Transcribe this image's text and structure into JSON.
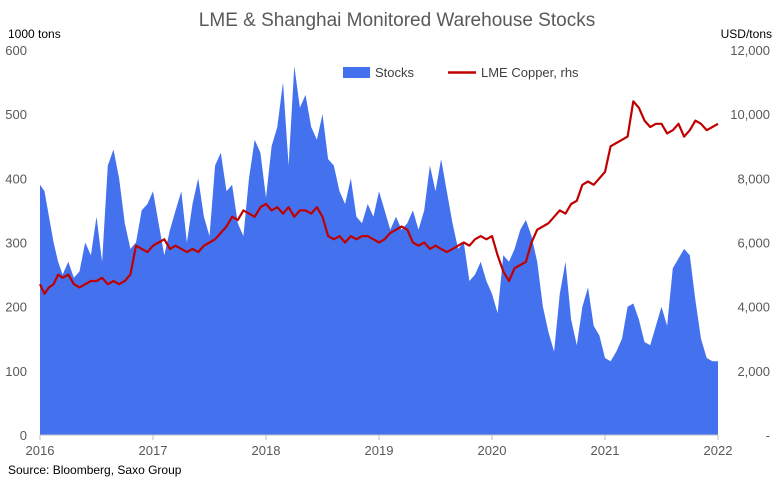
{
  "chart_data": {
    "type": "area",
    "title": "LME & Shanghai Monitored Warehouse Stocks",
    "left_axis_unit": "1000 tons",
    "right_axis_unit": "USD/tons",
    "source": "Source: Bloomberg, Saxo Group",
    "legend_position": "top-center",
    "grid": false,
    "x_range": [
      2016.0,
      2022.0
    ],
    "x_ticks": [
      "2016",
      "2017",
      "2018",
      "2019",
      "2020",
      "2021",
      "2022"
    ],
    "y_left": {
      "range": [
        0,
        600
      ],
      "ticks": [
        "0",
        "100",
        "200",
        "300",
        "400",
        "500",
        "600"
      ]
    },
    "y_right": {
      "range": [
        0,
        12000
      ],
      "ticks": [
        "-",
        "2,000",
        "4,000",
        "6,000",
        "8,000",
        "10,000",
        "12,000"
      ]
    },
    "series": [
      {
        "name": "Stocks",
        "type": "area",
        "axis": "left",
        "color": "#4472ef",
        "x": [
          2016.0,
          2016.04,
          2016.08,
          2016.12,
          2016.16,
          2016.2,
          2016.25,
          2016.3,
          2016.35,
          2016.4,
          2016.45,
          2016.5,
          2016.55,
          2016.6,
          2016.65,
          2016.7,
          2016.75,
          2016.8,
          2016.85,
          2016.9,
          2016.95,
          2017.0,
          2017.05,
          2017.1,
          2017.15,
          2017.2,
          2017.25,
          2017.3,
          2017.35,
          2017.4,
          2017.45,
          2017.5,
          2017.55,
          2017.6,
          2017.65,
          2017.7,
          2017.75,
          2017.8,
          2017.85,
          2017.9,
          2017.95,
          2018.0,
          2018.05,
          2018.1,
          2018.15,
          2018.2,
          2018.25,
          2018.3,
          2018.35,
          2018.4,
          2018.45,
          2018.5,
          2018.55,
          2018.6,
          2018.65,
          2018.7,
          2018.75,
          2018.8,
          2018.85,
          2018.9,
          2018.95,
          2019.0,
          2019.05,
          2019.1,
          2019.15,
          2019.2,
          2019.25,
          2019.3,
          2019.35,
          2019.4,
          2019.45,
          2019.5,
          2019.55,
          2019.6,
          2019.65,
          2019.7,
          2019.75,
          2019.8,
          2019.85,
          2019.9,
          2019.95,
          2020.0,
          2020.05,
          2020.1,
          2020.15,
          2020.2,
          2020.25,
          2020.3,
          2020.35,
          2020.4,
          2020.45,
          2020.5,
          2020.55,
          2020.6,
          2020.65,
          2020.7,
          2020.75,
          2020.8,
          2020.85,
          2020.9,
          2020.95,
          2021.0,
          2021.05,
          2021.1,
          2021.15,
          2021.2,
          2021.25,
          2021.3,
          2021.35,
          2021.4,
          2021.45,
          2021.5,
          2021.55,
          2021.6,
          2021.65,
          2021.7,
          2021.75,
          2021.8,
          2021.85,
          2021.9,
          2021.95,
          2022.0
        ],
        "values": [
          390,
          380,
          340,
          300,
          270,
          250,
          270,
          245,
          255,
          300,
          280,
          340,
          270,
          420,
          445,
          400,
          330,
          290,
          300,
          350,
          360,
          380,
          330,
          280,
          320,
          350,
          380,
          300,
          360,
          400,
          340,
          310,
          420,
          440,
          380,
          390,
          330,
          310,
          400,
          460,
          440,
          370,
          450,
          480,
          550,
          420,
          575,
          510,
          530,
          480,
          460,
          500,
          430,
          420,
          380,
          360,
          400,
          340,
          330,
          360,
          340,
          380,
          350,
          320,
          340,
          320,
          330,
          350,
          320,
          350,
          420,
          380,
          430,
          380,
          330,
          290,
          300,
          240,
          250,
          270,
          240,
          220,
          190,
          280,
          270,
          290,
          320,
          335,
          310,
          270,
          200,
          160,
          130,
          220,
          270,
          180,
          140,
          200,
          230,
          170,
          155,
          120,
          115,
          130,
          150,
          200,
          205,
          180,
          145,
          140,
          170,
          200,
          170,
          260,
          275,
          290,
          280,
          210,
          150,
          120,
          115,
          115
        ]
      },
      {
        "name": "LME Copper, rhs",
        "type": "line",
        "axis": "right",
        "color": "#c00000",
        "x": [
          2016.0,
          2016.04,
          2016.08,
          2016.12,
          2016.16,
          2016.2,
          2016.25,
          2016.3,
          2016.35,
          2016.4,
          2016.45,
          2016.5,
          2016.55,
          2016.6,
          2016.65,
          2016.7,
          2016.75,
          2016.8,
          2016.85,
          2016.9,
          2016.95,
          2017.0,
          2017.05,
          2017.1,
          2017.15,
          2017.2,
          2017.25,
          2017.3,
          2017.35,
          2017.4,
          2017.45,
          2017.5,
          2017.55,
          2017.6,
          2017.65,
          2017.7,
          2017.75,
          2017.8,
          2017.85,
          2017.9,
          2017.95,
          2018.0,
          2018.05,
          2018.1,
          2018.15,
          2018.2,
          2018.25,
          2018.3,
          2018.35,
          2018.4,
          2018.45,
          2018.5,
          2018.55,
          2018.6,
          2018.65,
          2018.7,
          2018.75,
          2018.8,
          2018.85,
          2018.9,
          2018.95,
          2019.0,
          2019.05,
          2019.1,
          2019.15,
          2019.2,
          2019.25,
          2019.3,
          2019.35,
          2019.4,
          2019.45,
          2019.5,
          2019.55,
          2019.6,
          2019.65,
          2019.7,
          2019.75,
          2019.8,
          2019.85,
          2019.9,
          2019.95,
          2020.0,
          2020.05,
          2020.1,
          2020.15,
          2020.2,
          2020.25,
          2020.3,
          2020.35,
          2020.4,
          2020.45,
          2020.5,
          2020.55,
          2020.6,
          2020.65,
          2020.7,
          2020.75,
          2020.8,
          2020.85,
          2020.9,
          2020.95,
          2021.0,
          2021.05,
          2021.1,
          2021.15,
          2021.2,
          2021.25,
          2021.3,
          2021.35,
          2021.4,
          2021.45,
          2021.5,
          2021.55,
          2021.6,
          2021.65,
          2021.7,
          2021.75,
          2021.8,
          2021.85,
          2021.9,
          2021.95,
          2022.0
        ],
        "values": [
          4700,
          4400,
          4600,
          4700,
          5000,
          4900,
          5000,
          4700,
          4600,
          4700,
          4800,
          4800,
          4900,
          4700,
          4800,
          4700,
          4800,
          5000,
          5900,
          5800,
          5700,
          5900,
          6000,
          6100,
          5800,
          5900,
          5800,
          5700,
          5800,
          5700,
          5900,
          6000,
          6100,
          6300,
          6500,
          6800,
          6700,
          7000,
          6900,
          6800,
          7100,
          7200,
          7000,
          7100,
          6900,
          7100,
          6800,
          7000,
          7000,
          6900,
          7100,
          6800,
          6200,
          6100,
          6200,
          6000,
          6200,
          6100,
          6200,
          6200,
          6100,
          6000,
          6100,
          6300,
          6400,
          6500,
          6400,
          6000,
          5900,
          6000,
          5800,
          5900,
          5800,
          5700,
          5800,
          5900,
          6000,
          5900,
          6100,
          6200,
          6100,
          6200,
          5600,
          5100,
          4800,
          5200,
          5300,
          5400,
          6000,
          6400,
          6500,
          6600,
          6800,
          7000,
          6900,
          7200,
          7300,
          7800,
          7900,
          7800,
          8000,
          8200,
          9000,
          9100,
          9200,
          9300,
          10400,
          10200,
          9800,
          9600,
          9700,
          9700,
          9400,
          9500,
          9700,
          9300,
          9500,
          9800,
          9700,
          9500,
          9600,
          9700
        ]
      }
    ]
  }
}
